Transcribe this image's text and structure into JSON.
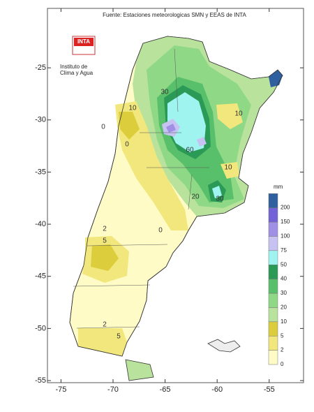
{
  "map": {
    "title": "Fuente: Estaciones meteorologicas SMN y EEAS de INTA",
    "logo": {
      "text": "INTA",
      "lines": [
        "Instituto de",
        "Clima y Agua"
      ]
    },
    "xlim": [
      -76.3,
      -51.7
    ],
    "ylim": [
      -55.2,
      -19.3
    ],
    "xticks": [
      -75,
      -70,
      -65,
      -60,
      -55
    ],
    "yticks": [
      -25,
      -30,
      -35,
      -40,
      -45,
      -50,
      -55
    ],
    "legend": {
      "title": "mm",
      "levels": [
        0,
        2,
        5,
        10,
        20,
        30,
        40,
        50,
        75,
        100,
        150,
        200
      ],
      "colors": [
        "#fffbc6",
        "#f2e77c",
        "#dccd3c",
        "#b9e39c",
        "#8fd886",
        "#58c06b",
        "#2b9a56",
        "#9ff4f0",
        "#c6c3f2",
        "#9f90e6",
        "#7262d8",
        "#2e5f9f"
      ]
    },
    "contour_labels": [
      10,
      0,
      30,
      60,
      10,
      10,
      30,
      20,
      0,
      2,
      5,
      0,
      2,
      5
    ]
  }
}
